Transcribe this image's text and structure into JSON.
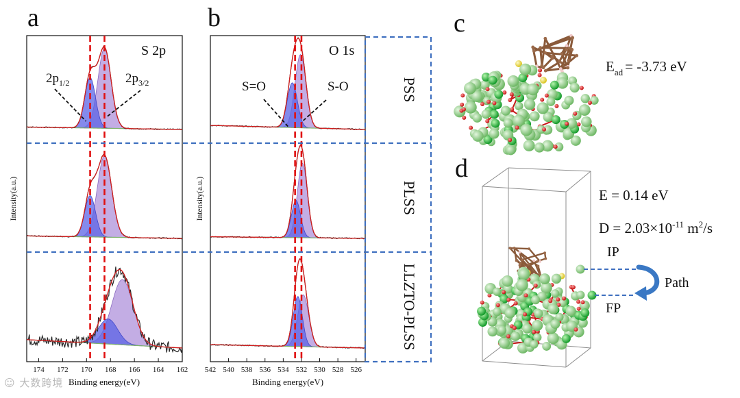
{
  "panel_labels": {
    "a": "a",
    "b": "b",
    "c": "c",
    "d": "d"
  },
  "colors": {
    "envelope": "#2b2b2b",
    "fit": "#d21f1f",
    "comp_blue": "#5b63e6",
    "comp_purple": "#a98ad8",
    "baseline": "#7fb36a",
    "dashed_ref": "#e01010",
    "divider": "#3e6fbf",
    "atom_green": "#8fcf86",
    "atom_dark": "#22b53a",
    "atom_red": "#e02020",
    "atom_brown": "#9b6a4a",
    "atom_yellow": "#f2e14b",
    "path_arrow": "#3a78c4"
  },
  "sample_labels": [
    "PSS",
    "PLSS",
    "LLZTO-PLSS"
  ],
  "annotations": {
    "c_energy": "E",
    "c_energy_sub": "ad",
    "c_energy_value": "= -3.73 eV",
    "d_energy": "E = 0.14 eV",
    "d_diff_prefix": "D = 2.03×10",
    "d_diff_exp": "-11",
    "d_diff_mid": " m",
    "d_diff_exp2": "2",
    "d_diff_suffix": "/s",
    "ip": "IP",
    "fp": "FP",
    "path": "Path"
  },
  "watermark": "大数跨境",
  "chart_data": [
    {
      "type": "line",
      "panel": "a",
      "title": "S 2p",
      "xlabel": "Binding energy(eV)",
      "ylabel": "Intensity(a.u.)",
      "xlim": [
        175,
        162
      ],
      "xticks": [
        174,
        172,
        170,
        168,
        166,
        164,
        162
      ],
      "reference_lines_eV": [
        169.7,
        168.5
      ],
      "peak_labels": [
        {
          "base": "2p",
          "sub": "1/2",
          "peak_eV": 169.7
        },
        {
          "base": "2p",
          "sub": "3/2",
          "peak_eV": 168.5
        }
      ],
      "rows": [
        {
          "sample": "PSS",
          "components": [
            {
              "name": "2p1/2",
              "center_eV": 169.7,
              "amplitude": 0.62,
              "width": 0.45
            },
            {
              "name": "2p3/2",
              "center_eV": 168.5,
              "amplitude": 0.98,
              "width": 0.55
            }
          ],
          "baseline": [
            0.03,
            0.0
          ],
          "noise": 0.0
        },
        {
          "sample": "PLSS",
          "components": [
            {
              "name": "2p1/2",
              "center_eV": 169.7,
              "amplitude": 0.5,
              "width": 0.45
            },
            {
              "name": "2p3/2",
              "center_eV": 168.5,
              "amplitude": 0.98,
              "width": 0.6
            }
          ],
          "baseline": [
            0.03,
            0.0
          ],
          "noise": 0.0
        },
        {
          "sample": "LLZTO-PLSS",
          "components": [
            {
              "name": "2p1/2",
              "center_eV": 168.2,
              "amplitude": 0.3,
              "width": 0.8
            },
            {
              "name": "2p3/2",
              "center_eV": 167.0,
              "amplitude": 0.78,
              "width": 0.9
            }
          ],
          "baseline": [
            0.1,
            0.0
          ],
          "noise": 0.07
        }
      ]
    },
    {
      "type": "line",
      "panel": "b",
      "title": "O 1s",
      "xlabel": "Binding energy(eV)",
      "ylabel": "Intensity(a.u.)",
      "xlim": [
        542,
        525
      ],
      "xticks": [
        542,
        540,
        538,
        536,
        534,
        532,
        530,
        528,
        526
      ],
      "reference_lines_eV": [
        532.7,
        532.0
      ],
      "peak_labels": [
        {
          "base": "S=O",
          "sub": "",
          "peak_eV": 533.0
        },
        {
          "base": "S-O",
          "sub": "",
          "peak_eV": 532.1
        }
      ],
      "rows": [
        {
          "sample": "PSS",
          "components": [
            {
              "name": "S=O",
              "center_eV": 533.0,
              "amplitude": 0.55,
              "width": 0.55
            },
            {
              "name": "S-O",
              "center_eV": 532.1,
              "amplitude": 0.9,
              "width": 0.6
            }
          ],
          "baseline": [
            0.05,
            0.0
          ],
          "noise": 0.0
        },
        {
          "sample": "PLSS",
          "components": [
            {
              "name": "S=O",
              "center_eV": 532.6,
              "amplitude": 0.45,
              "width": 0.5
            },
            {
              "name": "S-O",
              "center_eV": 531.9,
              "amplitude": 0.9,
              "width": 0.55
            }
          ],
          "baseline": [
            0.02,
            0.0
          ],
          "noise": 0.0
        },
        {
          "sample": "LLZTO-PLSS",
          "components": [
            {
              "name": "S=O",
              "center_eV": 532.4,
              "amplitude": 0.6,
              "width": 0.5
            },
            {
              "name": "S-O",
              "center_eV": 531.8,
              "amplitude": 0.62,
              "width": 0.6
            }
          ],
          "baseline": [
            0.04,
            0.0
          ],
          "noise": 0.0
        }
      ]
    }
  ]
}
